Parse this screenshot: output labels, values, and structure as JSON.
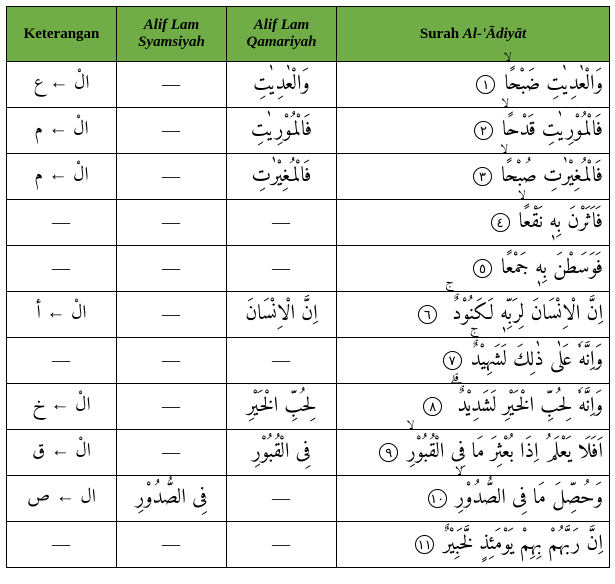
{
  "headers": {
    "ket": "Keterangan",
    "syam_l1": "Alif Lam",
    "syam_l2": "Syamsiyah",
    "qam_l1": "Alif Lam",
    "qam_l2": "Qamariyah",
    "surah_pre": "Surah ",
    "surah_it": "Al-'Ādiyāt"
  },
  "rows": [
    {
      "ket": "الْ ←‎ ع",
      "syam": "—",
      "qam": "وَالْعٰدِيٰتِ",
      "ayat": "وَالْعٰدِيٰتِ ضَبْحًاۙ",
      "num": "١"
    },
    {
      "ket": "الْ ←‎ م",
      "syam": "—",
      "qam": "فَالْمُوْرِيٰتِ",
      "ayat": "فَالْمُوْرِيٰتِ قَدْحًاۙ",
      "num": "٢"
    },
    {
      "ket": "الْ ←‎ م",
      "syam": "—",
      "qam": "فَالْمُغِيْرٰتِ",
      "ayat": "فَالْمُغِيْرٰتِ صُبْحًاۙ",
      "num": "٣"
    },
    {
      "ket": "—",
      "syam": "—",
      "qam": "—",
      "ayat": "فَاَثَرْنَ بِهٖ نَقْعًاۙ",
      "num": "٤"
    },
    {
      "ket": "—",
      "syam": "—",
      "qam": "—",
      "ayat": "فَوَسَطْنَ بِهٖ جَمْعًا",
      "num": "٥"
    },
    {
      "ket": "الْ ←‎ أ",
      "syam": "—",
      "qam": "اِنَّ الْاِنْسَانَ",
      "ayat": "اِنَّ الْاِنْسَانَ لِرَبِّهٖ لَكَنُوْدٌ ۚ",
      "num": "٦"
    },
    {
      "ket": "—",
      "syam": "—",
      "qam": "—",
      "ayat": "وَاِنَّهٗ عَلٰى ذٰلِكَ لَشَهِيْدٌۚ",
      "num": "٧"
    },
    {
      "ket": "الْ ←‎ خ",
      "syam": "—",
      "qam": "لِحُبِّ الْخَيْرِ",
      "ayat": "وَاِنَّهٗ لِحُبِّ الْخَيْرِ لَشَدِيْدٌ ۗ",
      "num": "٨"
    },
    {
      "ket": "الْ ←‎ ق",
      "syam": "—",
      "qam": "فِى الْقُبُوْرِ",
      "ayat": "اَفَلَا يَعْلَمُ اِذَا بُعْثِرَ مَا فِى الْقُبُوْرِۙ",
      "num": "٩"
    },
    {
      "ket": "ال ←‎ ص",
      "syam": "فِى الصُّدُوْرِ",
      "qam": "—",
      "ayat": "وَحُصِّلَ مَا فِى الصُّدُوْرِۙ",
      "num": "١٠"
    },
    {
      "ket": "—",
      "syam": "—",
      "qam": "—",
      "ayat": "اِنَّ رَبَّهُمْ بِهِمْ يَوْمَئِذٍ لَّخَبِيْرٌ",
      "num": "١١"
    }
  ],
  "colors": {
    "header_bg": "#70ad47",
    "border": "#000000"
  }
}
